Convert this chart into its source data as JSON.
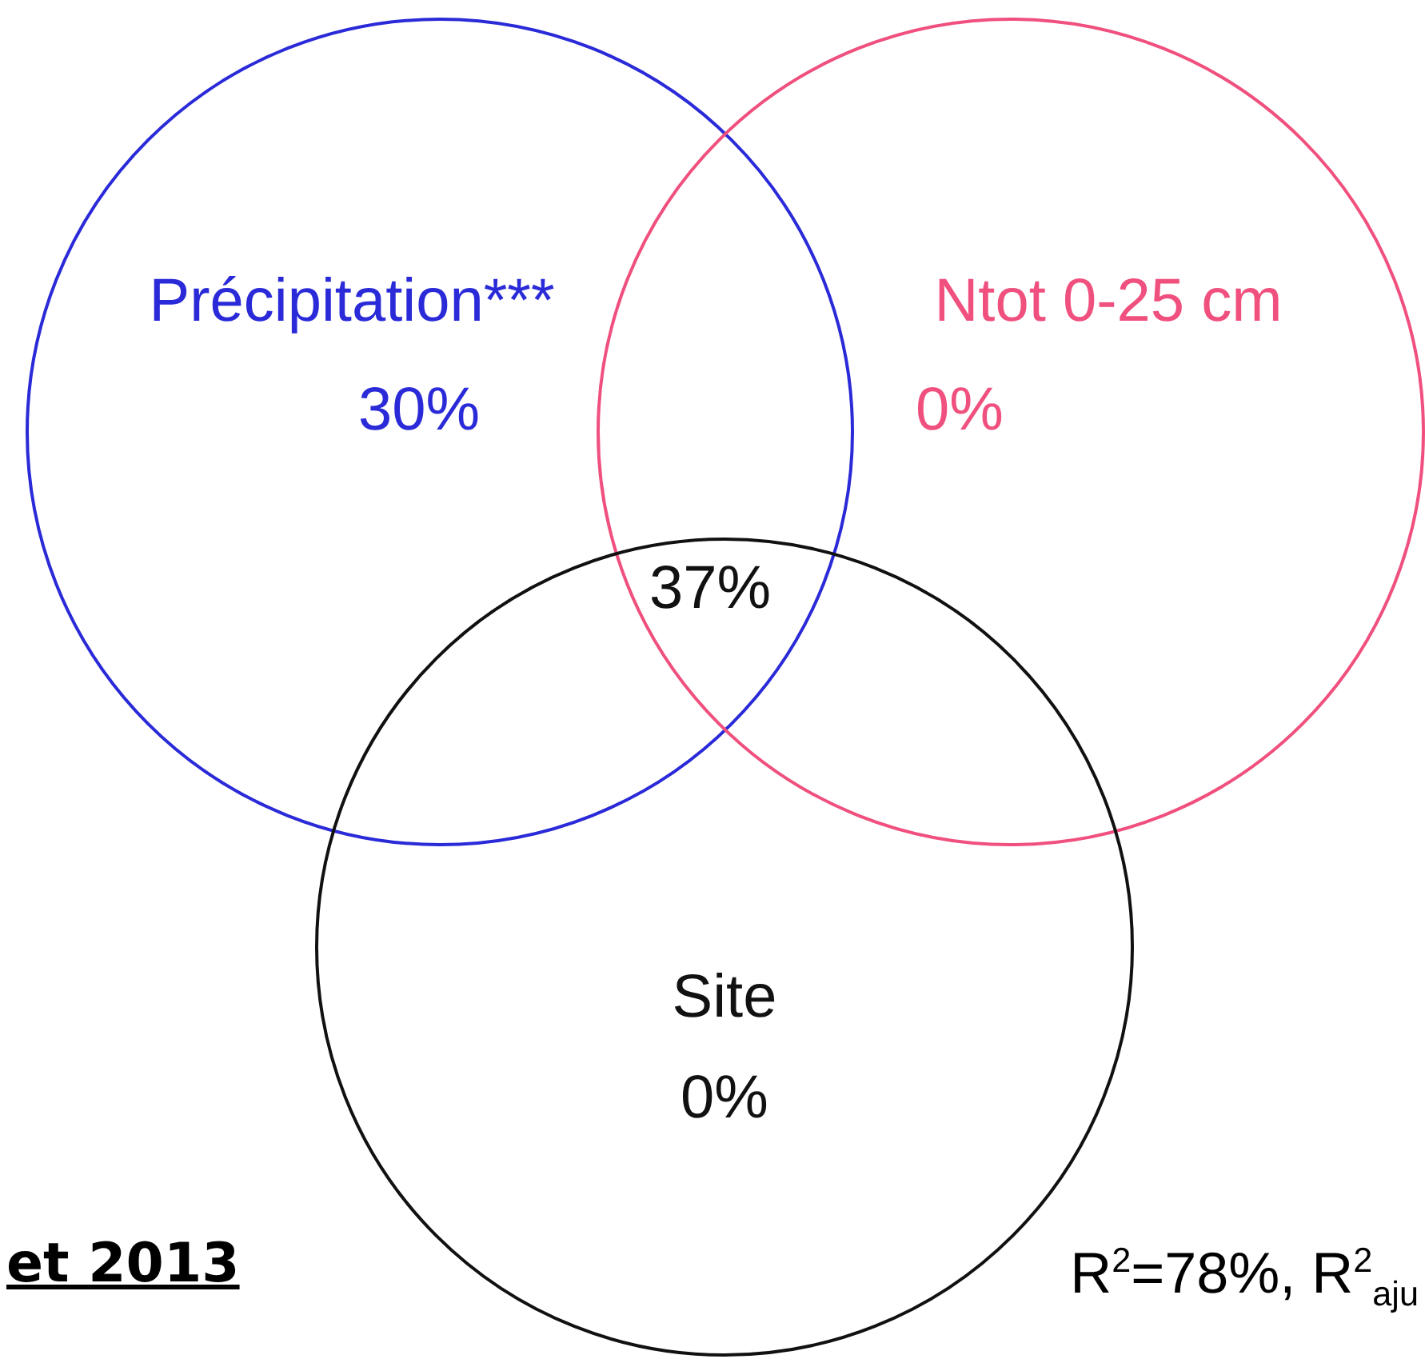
{
  "chart_data": {
    "type": "other",
    "categories": [
      "Précipitation***",
      "Ntot 0-25 cm",
      "Site"
    ],
    "values": [
      30,
      0,
      0
    ],
    "value_labels": [
      "30%",
      "0%",
      "0%"
    ],
    "colors": [
      "#2a2ad8",
      "#f0507e",
      "#111111"
    ],
    "annotations": [
      "37%",
      "et 2013",
      "R$^{2}$=78%, R$^{2}$$_{aju}$"
    ]
  }
}
